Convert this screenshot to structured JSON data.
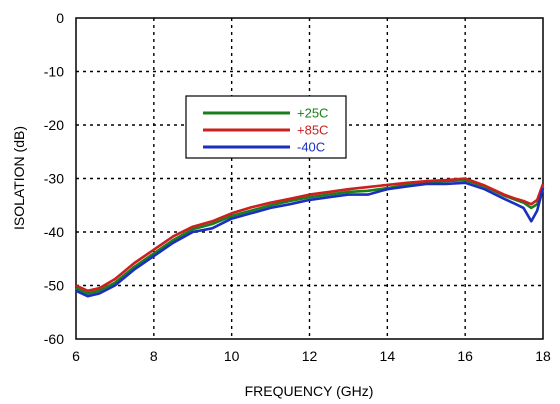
{
  "chart_data": {
    "type": "line",
    "title": "",
    "xlabel": "FREQUENCY (GHz)",
    "ylabel": "ISOLATION (dB)",
    "xlim": [
      6,
      18
    ],
    "ylim": [
      -60,
      0
    ],
    "xticks": [
      6,
      8,
      10,
      12,
      14,
      16,
      18
    ],
    "yticks": [
      0,
      -10,
      -20,
      -30,
      -40,
      -50,
      -60
    ],
    "grid": true,
    "legend_position": "upper-left-center",
    "series": [
      {
        "name": "+25C",
        "color": "#1a7f1a",
        "x": [
          6.0,
          6.3,
          6.6,
          7.0,
          7.5,
          8.0,
          8.5,
          9.0,
          9.5,
          10.0,
          10.5,
          11.0,
          11.5,
          12.0,
          12.5,
          13.0,
          13.5,
          14.0,
          14.5,
          15.0,
          15.5,
          16.0,
          16.5,
          17.0,
          17.3,
          17.5,
          17.7,
          17.85,
          18.0
        ],
        "y": [
          -50.5,
          -51.5,
          -51.0,
          -49.5,
          -46.5,
          -44.0,
          -41.5,
          -39.5,
          -38.5,
          -37.0,
          -36.0,
          -35.0,
          -34.2,
          -33.5,
          -33.0,
          -32.5,
          -32.3,
          -31.8,
          -31.2,
          -30.8,
          -30.5,
          -30.3,
          -31.5,
          -33.2,
          -34.0,
          -34.5,
          -35.5,
          -34.8,
          -31.5
        ]
      },
      {
        "name": "+85C",
        "color": "#cc1f1f",
        "x": [
          6.0,
          6.3,
          6.6,
          7.0,
          7.5,
          8.0,
          8.5,
          9.0,
          9.5,
          10.0,
          10.5,
          11.0,
          11.5,
          12.0,
          12.5,
          13.0,
          13.5,
          14.0,
          14.5,
          15.0,
          15.5,
          16.0,
          16.5,
          17.0,
          17.3,
          17.5,
          17.7,
          17.85,
          18.0
        ],
        "y": [
          -50.0,
          -51.0,
          -50.5,
          -48.8,
          -45.8,
          -43.3,
          -40.8,
          -39.0,
          -38.0,
          -36.5,
          -35.4,
          -34.5,
          -33.8,
          -33.0,
          -32.5,
          -32.0,
          -31.6,
          -31.2,
          -30.8,
          -30.5,
          -30.3,
          -30.0,
          -31.3,
          -33.0,
          -33.8,
          -34.2,
          -34.8,
          -34.0,
          -31.0
        ]
      },
      {
        "name": "-40C",
        "color": "#1a2fbf",
        "x": [
          6.0,
          6.3,
          6.6,
          7.0,
          7.5,
          8.0,
          8.5,
          9.0,
          9.5,
          10.0,
          10.5,
          11.0,
          11.5,
          12.0,
          12.5,
          13.0,
          13.5,
          14.0,
          14.5,
          15.0,
          15.5,
          16.0,
          16.5,
          17.0,
          17.3,
          17.5,
          17.7,
          17.85,
          18.0
        ],
        "y": [
          -51.0,
          -52.0,
          -51.5,
          -50.0,
          -47.0,
          -44.5,
          -42.0,
          -40.0,
          -39.3,
          -37.5,
          -36.5,
          -35.5,
          -34.8,
          -34.0,
          -33.5,
          -33.0,
          -33.0,
          -32.0,
          -31.5,
          -31.0,
          -31.0,
          -30.8,
          -32.0,
          -33.8,
          -34.8,
          -35.5,
          -38.0,
          -36.0,
          -31.8
        ]
      }
    ]
  }
}
